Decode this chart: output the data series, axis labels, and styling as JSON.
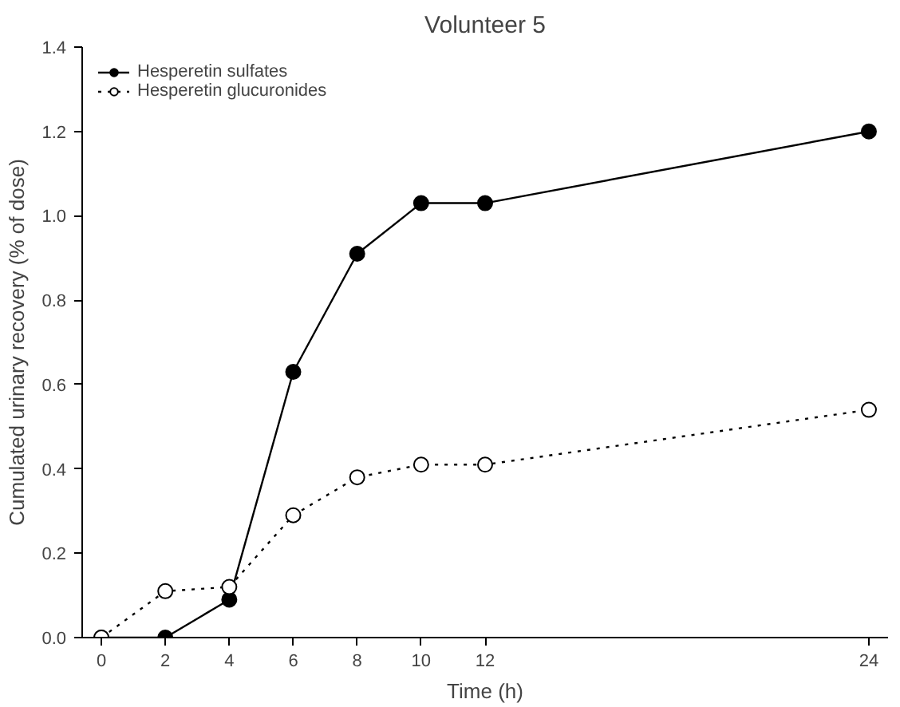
{
  "chart_data": {
    "type": "line",
    "title": "Volunteer 5",
    "xlabel": "Time (h)",
    "ylabel": "Cumulated urinary recovery (% of dose)",
    "x": [
      0,
      2,
      4,
      6,
      8,
      10,
      12,
      24
    ],
    "series": [
      {
        "name": "Hesperetin sulfates",
        "color": "#000000",
        "line_style": "solid",
        "values": [
          0,
          0,
          0.09,
          0.63,
          0.91,
          1.03,
          1.03,
          1.2
        ]
      },
      {
        "name": "Hesperetin glucuronides",
        "color": "#000000",
        "line_style": "dotted",
        "values": [
          0,
          0.11,
          0.12,
          0.29,
          0.38,
          0.41,
          0.41,
          0.54
        ]
      }
    ],
    "xlim": [
      -0.6,
      24.6
    ],
    "ylim": [
      0,
      1.4
    ],
    "xticks": [
      0,
      2,
      4,
      6,
      8,
      10,
      12,
      24
    ],
    "yticks": [
      {
        "value": 0,
        "label": "0.0"
      },
      {
        "value": 0.2,
        "label": "0.2"
      },
      {
        "value": 0.4,
        "label": "0.4"
      },
      {
        "value": 0.6,
        "label": "0.6"
      },
      {
        "value": 0.8,
        "label": "0.8"
      },
      {
        "value": 1.0,
        "label": "1.0"
      },
      {
        "value": 1.2,
        "label": "1.2"
      },
      {
        "value": 1.4,
        "label": "1.4"
      }
    ],
    "marker": "circle",
    "grid": false,
    "legend": "top left"
  }
}
